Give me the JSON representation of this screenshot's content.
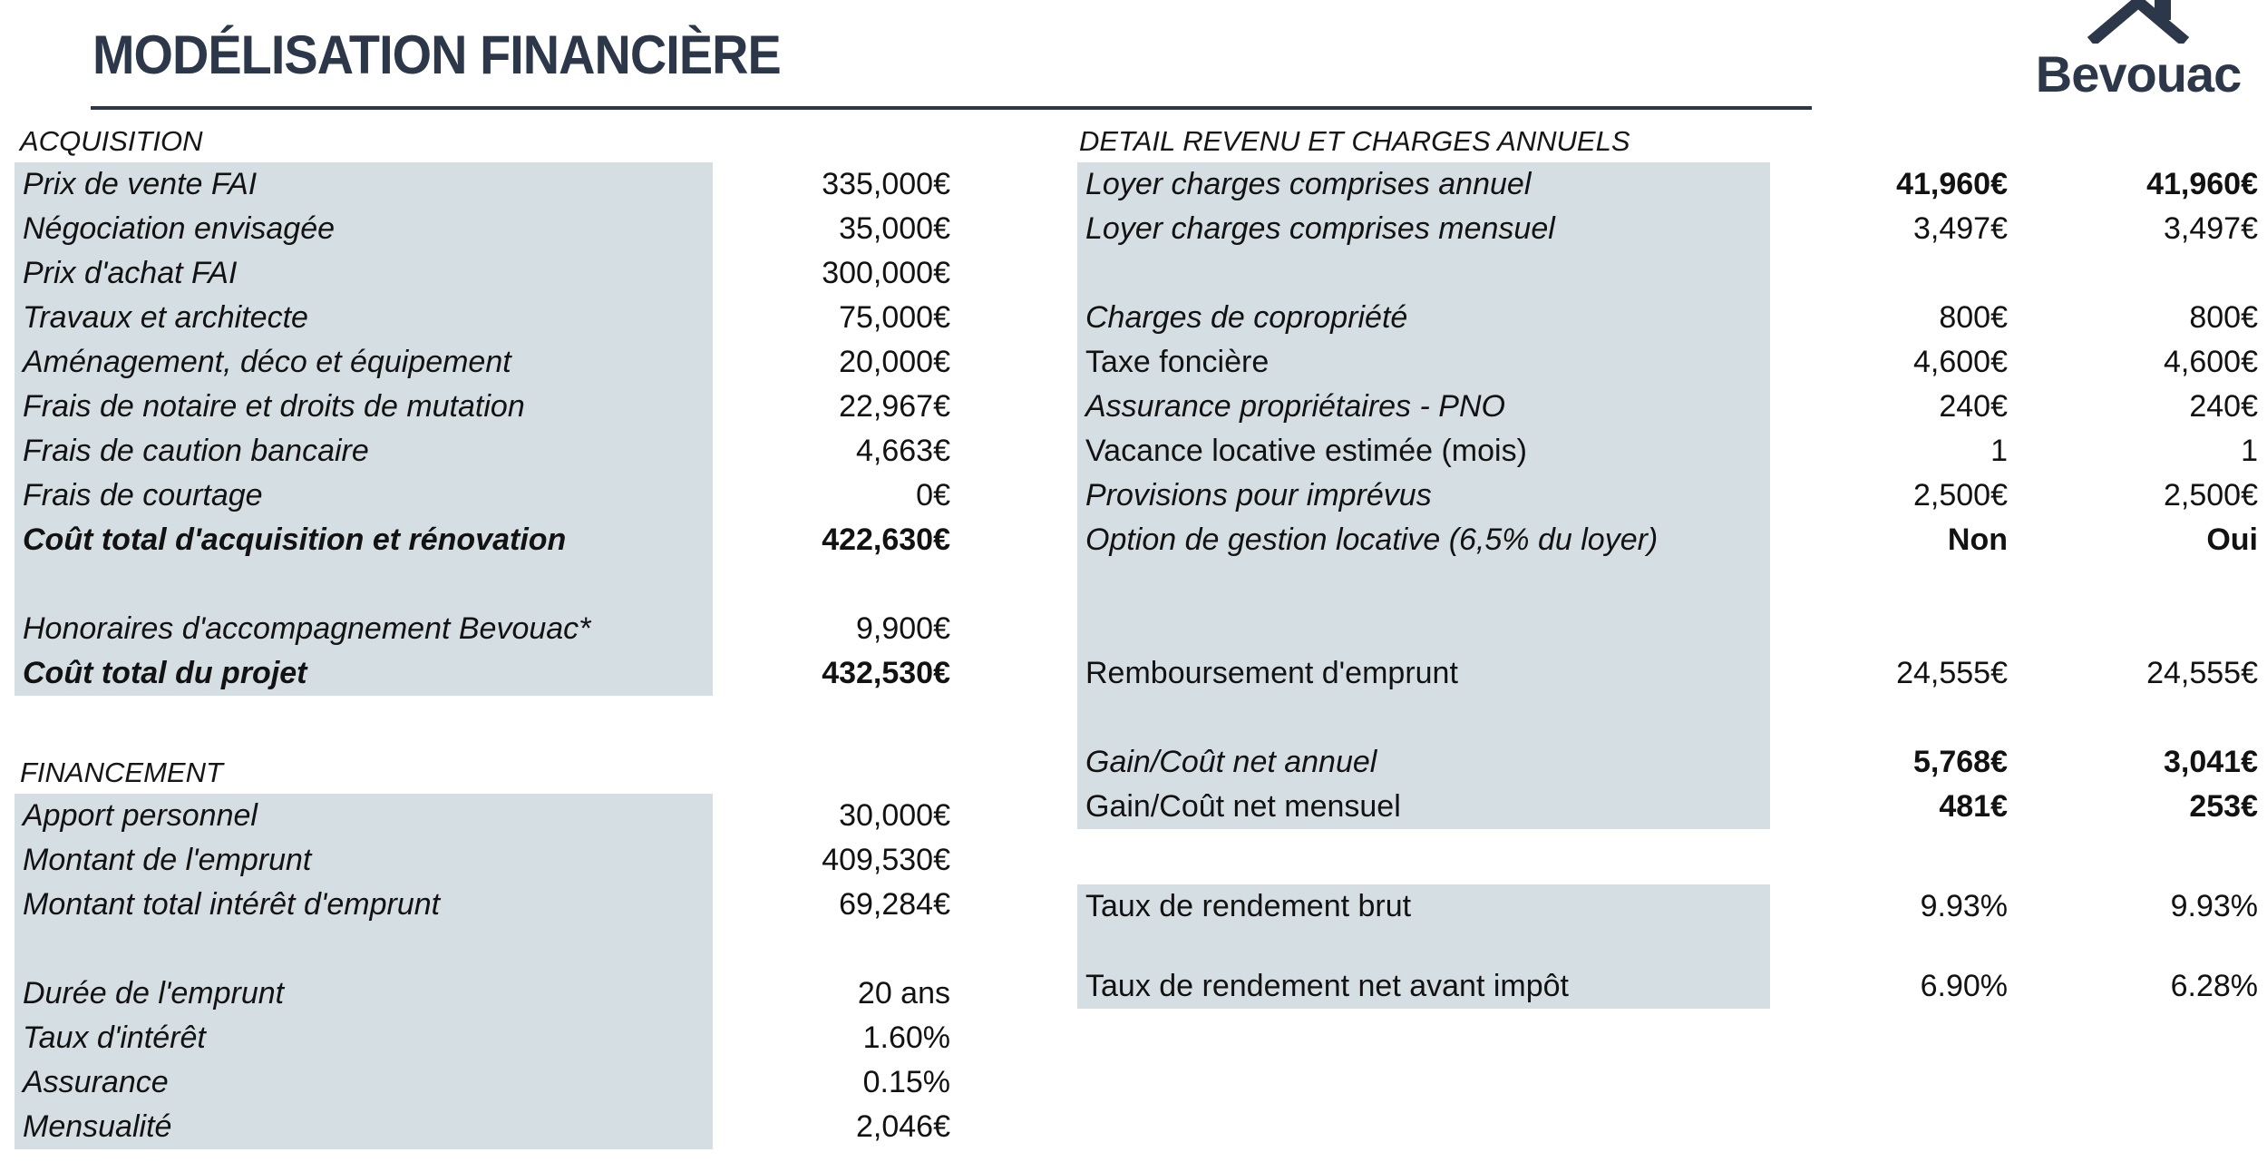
{
  "header": {
    "title": "MODÉLISATION FINANCIÈRE",
    "logo_text": "Bevouac"
  },
  "colors": {
    "accent_navy": "#2c3849",
    "row_shade": "#d5dfe3",
    "text": "#121212"
  },
  "left": {
    "acquisition": {
      "heading": "ACQUISITION",
      "rows": [
        {
          "label": "Prix de vente FAI",
          "values": [
            "335,000€"
          ],
          "italic": true
        },
        {
          "label": "Négociation envisagée",
          "values": [
            "35,000€"
          ],
          "italic": true
        },
        {
          "label": "Prix d'achat FAI",
          "values": [
            "300,000€"
          ],
          "italic": true
        },
        {
          "label": "Travaux et architecte",
          "values": [
            "75,000€"
          ],
          "italic": true
        },
        {
          "label": "Aménagement, déco et équipement",
          "values": [
            "20,000€"
          ],
          "italic": true
        },
        {
          "label": "Frais de notaire et droits de mutation",
          "values": [
            "22,967€"
          ],
          "italic": true
        },
        {
          "label": "Frais de caution bancaire",
          "values": [
            "4,663€"
          ],
          "italic": true
        },
        {
          "label": "Frais de courtage",
          "values": [
            "0€"
          ],
          "italic": true
        },
        {
          "label": "Coût total d'acquisition et rénovation",
          "values": [
            "422,630€"
          ],
          "italic": true,
          "bold": true
        },
        {
          "blank": true
        },
        {
          "label": "Honoraires d'accompagnement Bevouac*",
          "values": [
            "9,900€"
          ],
          "italic": true
        },
        {
          "label": "Coût total du projet",
          "values": [
            "432,530€"
          ],
          "italic": true,
          "bold": true
        }
      ]
    },
    "financement": {
      "heading": "FINANCEMENT",
      "rows": [
        {
          "label": "Apport personnel",
          "values": [
            "30,000€"
          ],
          "italic": true
        },
        {
          "label": "Montant de l'emprunt",
          "values": [
            "409,530€"
          ],
          "italic": true
        },
        {
          "label": "Montant total intérêt d'emprunt",
          "values": [
            "69,284€"
          ],
          "italic": true
        },
        {
          "blank": true
        },
        {
          "label": "Durée de l'emprunt",
          "values": [
            "20 ans"
          ],
          "italic": true
        },
        {
          "label": "Taux d'intérêt",
          "values": [
            "1.60%"
          ],
          "italic": true
        },
        {
          "label": "Assurance",
          "values": [
            "0.15%"
          ],
          "italic": true
        },
        {
          "label": "Mensualité",
          "values": [
            "2,046€"
          ],
          "italic": true
        }
      ]
    }
  },
  "right": {
    "heading": "DETAIL REVENU ET CHARGES ANNUELS",
    "rows": [
      {
        "label": "Loyer charges comprises annuel",
        "values": [
          "41,960€",
          "41,960€"
        ],
        "italic": true,
        "bold_values": true
      },
      {
        "label": "Loyer charges comprises mensuel",
        "values": [
          "3,497€",
          "3,497€"
        ],
        "italic": true
      },
      {
        "blank": true
      },
      {
        "label": "Charges de copropriété",
        "values": [
          "800€",
          "800€"
        ],
        "italic": true
      },
      {
        "label": "Taxe foncière",
        "values": [
          "4,600€",
          "4,600€"
        ],
        "italic": false
      },
      {
        "label": "Assurance propriétaires - PNO",
        "values": [
          "240€",
          "240€"
        ],
        "italic": true
      },
      {
        "label": "Vacance locative estimée (mois)",
        "values": [
          "1",
          "1"
        ],
        "italic": false
      },
      {
        "label": "Provisions pour imprévus",
        "values": [
          "2,500€",
          "2,500€"
        ],
        "italic": true
      },
      {
        "label": "Option de gestion locative (6,5% du loyer)",
        "values": [
          "Non",
          "Oui"
        ],
        "italic": true,
        "bold_values": true
      },
      {
        "blank": true
      },
      {
        "blank": true
      },
      {
        "label": "Remboursement d'emprunt",
        "values": [
          "24,555€",
          "24,555€"
        ],
        "italic": false
      },
      {
        "blank": true
      },
      {
        "label": "Gain/Coût net annuel",
        "values": [
          "5,768€",
          "3,041€"
        ],
        "italic": true,
        "bold_values": true
      },
      {
        "label": "Gain/Coût net mensuel",
        "values": [
          "481€",
          "253€"
        ],
        "italic": false,
        "bold_values": true
      }
    ],
    "rendement": {
      "rows": [
        {
          "label": "Taux de rendement brut",
          "values": [
            "9.93%",
            "9.93%"
          ],
          "italic": false
        },
        {
          "blank": true,
          "spacer": true
        },
        {
          "label": "Taux de rendement net avant impôt",
          "values": [
            "6.90%",
            "6.28%"
          ],
          "italic": false
        }
      ]
    }
  }
}
